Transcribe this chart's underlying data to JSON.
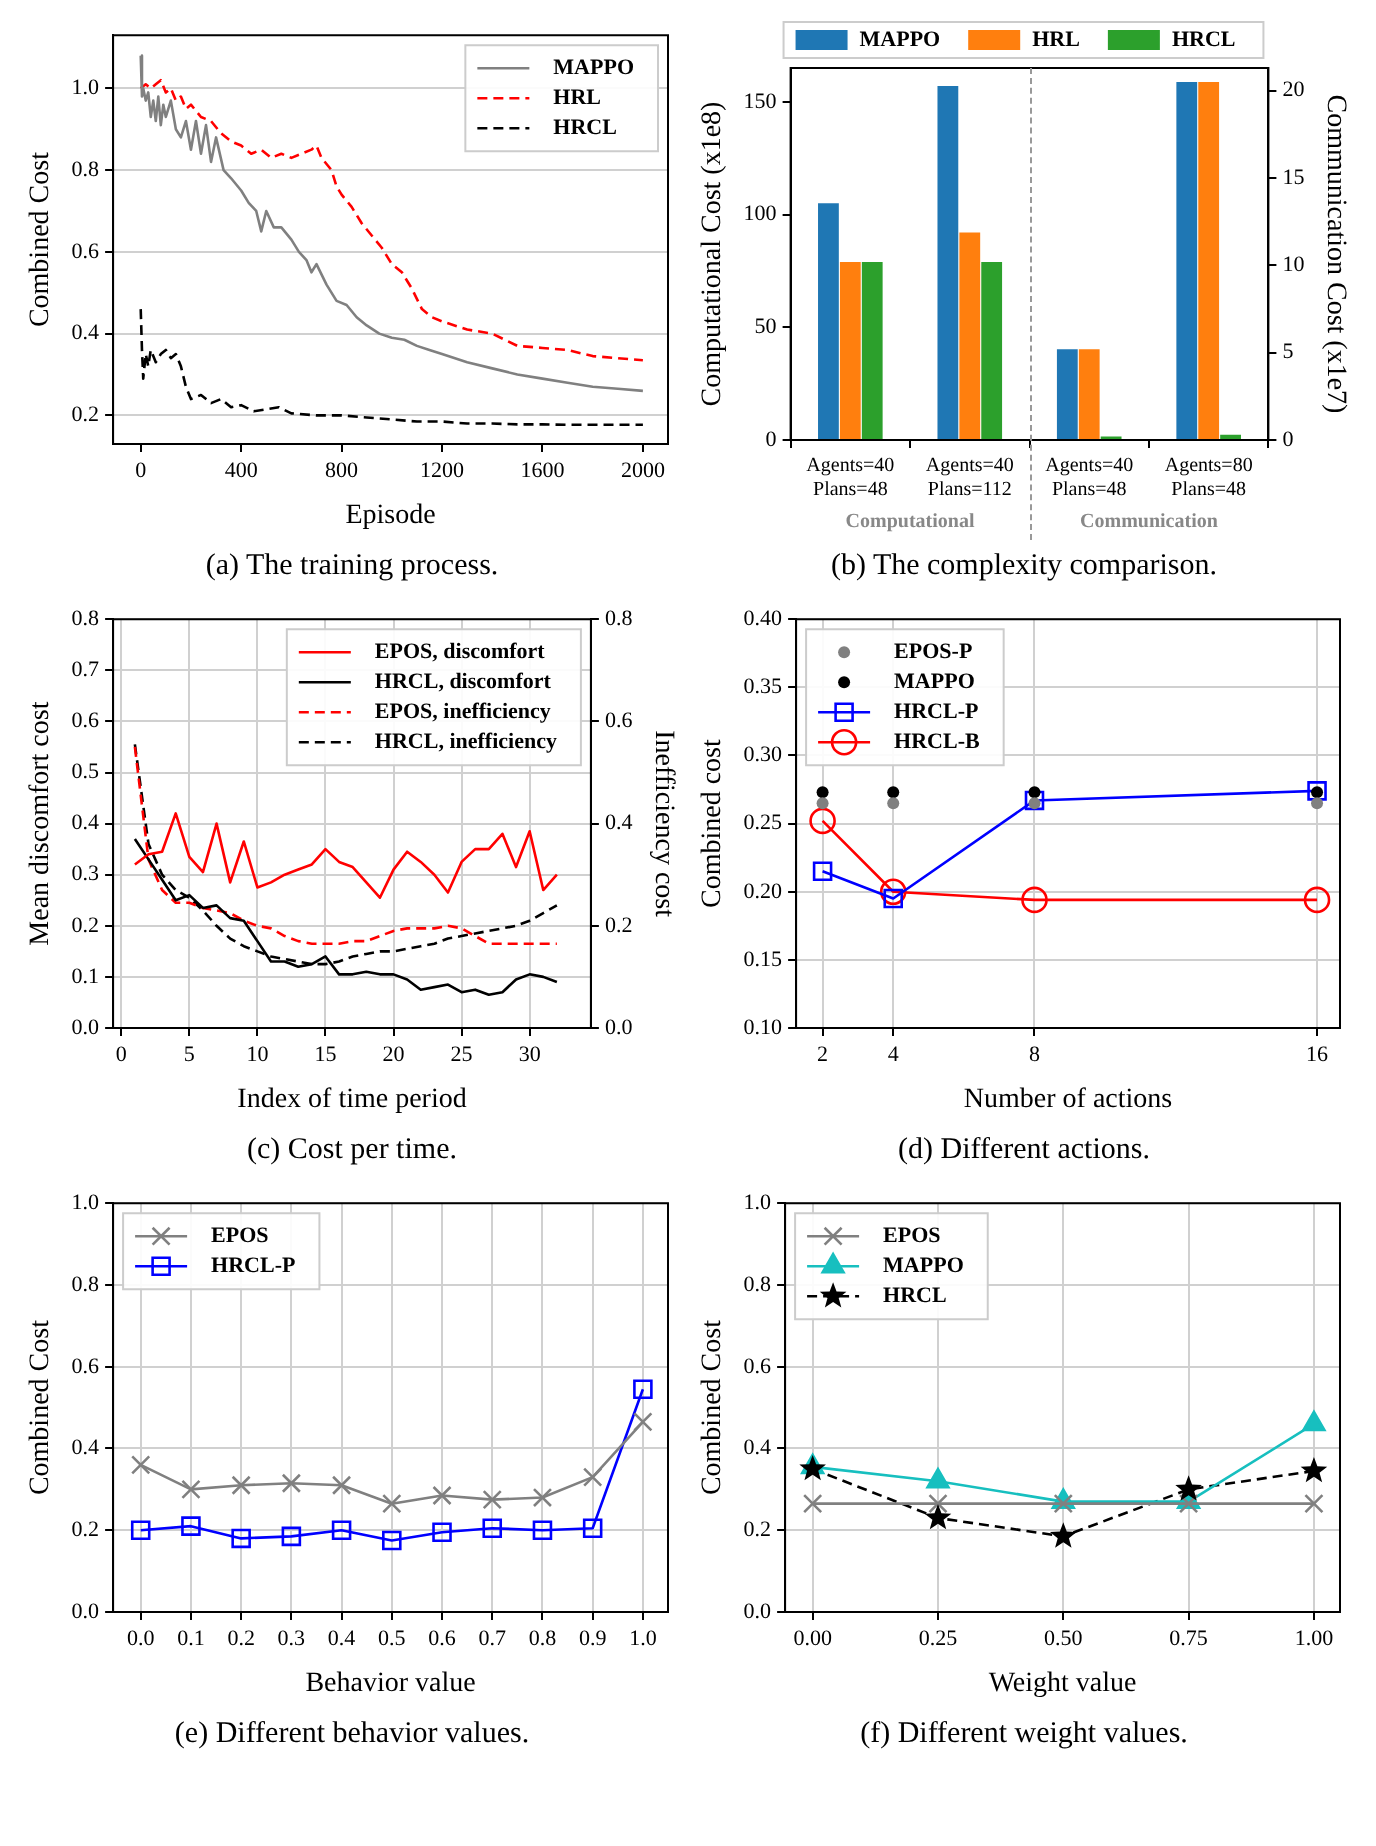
{
  "chart_data": [
    {
      "type": "line",
      "xlabel": "Episode",
      "ylabel": "Combined Cost",
      "annotations": [
        "(a) The training process."
      ],
      "xlim": [
        -110,
        2100
      ],
      "ylim": [
        0.13,
        1.13
      ],
      "xticks": [
        0,
        400,
        800,
        1200,
        1600,
        2000
      ],
      "yticks": [
        0.2,
        0.4,
        0.6,
        0.8,
        {
          "value": 1,
          "label": "1.0"
        }
      ],
      "grid": "y",
      "legend": "top right",
      "series": [
        {
          "name": "MAPPO",
          "color": "#808080",
          "line_style": "solid",
          "x": [
            0,
            5,
            10,
            20,
            30,
            40,
            50,
            60,
            70,
            80,
            90,
            100,
            120,
            140,
            160,
            180,
            200,
            220,
            240,
            260,
            280,
            300,
            330,
            360,
            400,
            430,
            460,
            480,
            500,
            530,
            560,
            600,
            630,
            660,
            680,
            700,
            740,
            780,
            820,
            860,
            900,
            950,
            1000,
            1050,
            1100,
            1150,
            1200,
            1300,
            1400,
            1500,
            1600,
            1700,
            1800,
            1900,
            2000
          ],
          "values": [
            1.08,
            0.98,
            1.0,
            0.97,
            0.99,
            0.93,
            0.97,
            0.92,
            0.98,
            0.91,
            0.96,
            0.93,
            0.97,
            0.9,
            0.88,
            0.92,
            0.85,
            0.92,
            0.84,
            0.91,
            0.82,
            0.88,
            0.8,
            0.78,
            0.75,
            0.72,
            0.7,
            0.65,
            0.7,
            0.66,
            0.66,
            0.63,
            0.6,
            0.58,
            0.55,
            0.57,
            0.52,
            0.48,
            0.47,
            0.44,
            0.42,
            0.4,
            0.39,
            0.385,
            0.37,
            0.36,
            0.35,
            0.33,
            0.315,
            0.3,
            0.29,
            0.28,
            0.27,
            0.265,
            0.26
          ]
        },
        {
          "name": "HRL",
          "color": "#ff0000",
          "line_style": "dashed",
          "x": [
            0,
            20,
            40,
            60,
            80,
            100,
            120,
            140,
            160,
            180,
            200,
            240,
            280,
            320,
            360,
            400,
            440,
            480,
            520,
            560,
            600,
            640,
            680,
            700,
            720,
            760,
            780,
            800,
            840,
            880,
            920,
            960,
            1000,
            1040,
            1080,
            1120,
            1160,
            1200,
            1300,
            1400,
            1500,
            1600,
            1700,
            1800,
            1900,
            2000
          ],
          "values": [
            1.0,
            1.01,
            1.0,
            1.01,
            1.02,
            0.99,
            1.0,
            0.97,
            0.98,
            0.95,
            0.96,
            0.93,
            0.92,
            0.89,
            0.87,
            0.86,
            0.84,
            0.85,
            0.83,
            0.84,
            0.83,
            0.84,
            0.85,
            0.86,
            0.83,
            0.8,
            0.76,
            0.74,
            0.71,
            0.67,
            0.64,
            0.61,
            0.57,
            0.55,
            0.51,
            0.46,
            0.44,
            0.43,
            0.41,
            0.4,
            0.37,
            0.365,
            0.36,
            0.345,
            0.34,
            0.335
          ]
        },
        {
          "name": "HRCL",
          "color": "#000000",
          "line_style": "dashed",
          "x": [
            0,
            5,
            10,
            20,
            30,
            40,
            60,
            80,
            100,
            120,
            140,
            160,
            180,
            200,
            240,
            280,
            320,
            360,
            400,
            450,
            500,
            550,
            600,
            700,
            800,
            900,
            1000,
            1100,
            1200,
            1300,
            1400,
            1500,
            1600,
            1700,
            1800,
            1900,
            2000
          ],
          "values": [
            0.46,
            0.36,
            0.29,
            0.35,
            0.32,
            0.36,
            0.33,
            0.35,
            0.36,
            0.34,
            0.35,
            0.32,
            0.27,
            0.24,
            0.25,
            0.23,
            0.24,
            0.22,
            0.225,
            0.21,
            0.215,
            0.22,
            0.205,
            0.2,
            0.2,
            0.195,
            0.19,
            0.185,
            0.185,
            0.18,
            0.18,
            0.178,
            0.178,
            0.177,
            0.177,
            0.177,
            0.177
          ]
        }
      ]
    },
    {
      "type": "bar",
      "ylabel": "Computational Cost (x1e8)",
      "y2label": "Communication Cost (x1e7)",
      "annotations": [
        "Computational",
        "Communication",
        "(b) The complexity comparison."
      ],
      "categories": [
        "Agents=40\nPlans=48",
        "Agents=40\nPlans=112",
        "Agents=40\nPlans=48",
        "Agents=80\nPlans=48"
      ],
      "ylim": [
        0,
        165
      ],
      "yticks": [
        0,
        50,
        100,
        150
      ],
      "y2lim": [
        0,
        21.3
      ],
      "y2ticks": [
        0,
        5,
        10,
        15,
        20
      ],
      "legend": "top",
      "series": [
        {
          "name": "MAPPO",
          "color": "#1f77b4",
          "values": [
            105,
            157,
            null,
            null
          ]
        },
        {
          "name": "HRL",
          "color": "#ff7f0e",
          "values": [
            79,
            92,
            null,
            null
          ]
        },
        {
          "name": "HRCL",
          "color": "#2ca02c",
          "values": [
            79,
            79,
            null,
            null
          ]
        },
        {
          "color": "#1f77b4",
          "axis": "y2",
          "values": [
            null,
            null,
            5.2,
            20.5
          ]
        },
        {
          "color": "#ff7f0e",
          "axis": "y2",
          "values": [
            null,
            null,
            5.2,
            20.5
          ]
        },
        {
          "color": "#2ca02c",
          "axis": "y2",
          "values": [
            null,
            null,
            0.2,
            0.3
          ]
        }
      ]
    },
    {
      "type": "line",
      "xlabel": "Index of time period",
      "ylabel": "Mean discomfort cost",
      "y2label": "Inefficiency cost",
      "annotations": [
        "(c) Cost per time."
      ],
      "x": [
        1,
        2,
        3,
        4,
        5,
        6,
        7,
        8,
        9,
        10,
        11,
        12,
        13,
        14,
        15,
        16,
        17,
        18,
        19,
        20,
        21,
        22,
        23,
        24,
        25,
        26,
        27,
        28,
        29,
        30,
        31,
        32
      ],
      "xlim": [
        -0.6,
        34.5
      ],
      "xticks": [
        0,
        5,
        10,
        15,
        20,
        25,
        30
      ],
      "ylim": [
        0,
        0.8
      ],
      "yticks": [
        {
          "value": 0,
          "label": "0.0"
        },
        0.1,
        0.2,
        0.3,
        0.4,
        0.5,
        0.6,
        0.7,
        0.8
      ],
      "y2lim": [
        0,
        0.8
      ],
      "y2ticks": [
        {
          "value": 0,
          "label": "0.0"
        },
        0.2,
        0.4,
        0.6,
        0.8
      ],
      "grid": true,
      "legend": "top right",
      "series": [
        {
          "name": "EPOS, discomfort",
          "color": "#ff0000",
          "line_style": "solid",
          "values": [
            0.32,
            0.34,
            0.345,
            0.42,
            0.335,
            0.305,
            0.4,
            0.285,
            0.365,
            0.275,
            0.285,
            0.3,
            0.31,
            0.32,
            0.35,
            0.325,
            0.315,
            0.285,
            0.255,
            0.31,
            0.345,
            0.325,
            0.3,
            0.265,
            0.325,
            0.35,
            0.35,
            0.38,
            0.315,
            0.385,
            0.27,
            0.3
          ]
        },
        {
          "name": "HRCL, discomfort",
          "color": "#000000",
          "line_style": "solid",
          "values": [
            0.37,
            0.33,
            0.29,
            0.25,
            0.26,
            0.235,
            0.24,
            0.215,
            0.21,
            0.17,
            0.13,
            0.13,
            0.12,
            0.125,
            0.14,
            0.105,
            0.105,
            0.11,
            0.105,
            0.105,
            0.095,
            0.075,
            0.08,
            0.085,
            0.07,
            0.075,
            0.065,
            0.07,
            0.095,
            0.105,
            0.1,
            0.09
          ]
        },
        {
          "name": "EPOS, inefficiency",
          "color": "#ff0000",
          "line_style": "dashed",
          "axis": "y2",
          "values": [
            0.55,
            0.33,
            0.27,
            0.245,
            0.245,
            0.235,
            0.23,
            0.225,
            0.21,
            0.2,
            0.195,
            0.18,
            0.17,
            0.165,
            0.165,
            0.165,
            0.17,
            0.17,
            0.18,
            0.19,
            0.195,
            0.195,
            0.195,
            0.2,
            0.195,
            0.18,
            0.165,
            0.165,
            0.165,
            0.165,
            0.165,
            0.165
          ]
        },
        {
          "name": "HRCL, inefficiency",
          "color": "#000000",
          "line_style": "dashed",
          "axis": "y2",
          "values": [
            0.555,
            0.36,
            0.3,
            0.27,
            0.255,
            0.23,
            0.2,
            0.175,
            0.16,
            0.15,
            0.14,
            0.135,
            0.13,
            0.125,
            0.125,
            0.13,
            0.14,
            0.145,
            0.15,
            0.15,
            0.155,
            0.16,
            0.165,
            0.175,
            0.18,
            0.185,
            0.19,
            0.195,
            0.2,
            0.21,
            0.225,
            0.24
          ]
        }
      ]
    },
    {
      "type": "line",
      "xlabel": "Number of actions",
      "ylabel": "Combined cost",
      "annotations": [
        "(d) Different actions."
      ],
      "x": [
        2,
        4,
        8,
        16
      ],
      "xlim": [
        1.25,
        16.65
      ],
      "xticks": [
        2,
        4,
        8,
        16
      ],
      "ylim": [
        0.1,
        0.4
      ],
      "yticks": [
        {
          "value": 0.1,
          "label": "0.10"
        },
        0.15,
        {
          "value": 0.2,
          "label": "0.20"
        },
        0.25,
        {
          "value": 0.3,
          "label": "0.30"
        },
        0.35,
        {
          "value": 0.4,
          "label": "0.40"
        }
      ],
      "grid": true,
      "legend": "top left",
      "series": [
        {
          "name": "EPOS-P",
          "type": "scatter",
          "marker": "circle",
          "color": "#808080",
          "values": [
            0.265,
            0.265,
            0.265,
            0.265
          ]
        },
        {
          "name": "MAPPO",
          "type": "scatter",
          "marker": "circle",
          "color": "#000000",
          "values": [
            0.273,
            0.273,
            0.273,
            0.273
          ]
        },
        {
          "name": "HRCL-P",
          "marker": "square",
          "color": "#0000ff",
          "values": [
            0.215,
            0.195,
            0.267,
            0.274
          ]
        },
        {
          "name": "HRCL-B",
          "marker": "circle",
          "color": "#ff0000",
          "values": [
            0.252,
            0.2,
            0.194,
            0.194
          ]
        }
      ]
    },
    {
      "type": "line",
      "xlabel": "Behavior value",
      "ylabel": "Combined Cost",
      "annotations": [
        "(e) Different behavior values."
      ],
      "x": [
        0,
        0.1,
        0.2,
        0.3,
        0.4,
        0.5,
        0.6,
        0.7,
        0.8,
        0.9,
        1
      ],
      "xlim": [
        -0.055,
        1.05
      ],
      "xticks": [
        {
          "value": 0,
          "label": "0.0"
        },
        0.1,
        0.2,
        0.3,
        0.4,
        0.5,
        0.6,
        0.7,
        0.8,
        0.9,
        {
          "value": 1,
          "label": "1.0"
        }
      ],
      "ylim": [
        0,
        1
      ],
      "yticks": [
        {
          "value": 0,
          "label": "0.0"
        },
        0.2,
        0.4,
        0.6,
        0.8,
        {
          "value": 1,
          "label": "1.0"
        }
      ],
      "grid": true,
      "legend": "top left",
      "series": [
        {
          "name": "EPOS",
          "marker": "cross",
          "color": "#808080",
          "values": [
            0.36,
            0.3,
            0.31,
            0.315,
            0.31,
            0.265,
            0.285,
            0.275,
            0.28,
            0.33,
            0.465
          ]
        },
        {
          "name": "HRCL-P",
          "marker": "square",
          "color": "#0000ff",
          "values": [
            0.2,
            0.21,
            0.18,
            0.185,
            0.2,
            0.175,
            0.195,
            0.205,
            0.2,
            0.205,
            0.545
          ]
        }
      ]
    },
    {
      "type": "line",
      "xlabel": "Weight value",
      "ylabel": "Combined Cost",
      "annotations": [
        "(f) Different weight values."
      ],
      "x": [
        0,
        0.25,
        0.5,
        0.75,
        1
      ],
      "xlim": [
        -0.055,
        1.052
      ],
      "xticks": [
        {
          "value": 0,
          "label": "0.00"
        },
        0.25,
        {
          "value": 0.5,
          "label": "0.50"
        },
        0.75,
        {
          "value": 1,
          "label": "1.00"
        }
      ],
      "ylim": [
        0,
        1
      ],
      "yticks": [
        {
          "value": 0,
          "label": "0.0"
        },
        0.2,
        0.4,
        0.6,
        0.8,
        {
          "value": 1,
          "label": "1.0"
        }
      ],
      "grid": true,
      "legend": "top left",
      "series": [
        {
          "name": "EPOS",
          "marker": "cross",
          "color": "#808080",
          "values": [
            0.265,
            0.265,
            0.265,
            0.265,
            0.265
          ]
        },
        {
          "name": "MAPPO",
          "marker": "triangle",
          "color": "#17bfbf",
          "values": [
            0.355,
            0.32,
            0.27,
            0.27,
            0.46
          ]
        },
        {
          "name": "HRCL",
          "marker": "star",
          "line_style": "dashed",
          "color": "#000000",
          "values": [
            0.35,
            0.23,
            0.185,
            0.3,
            0.345
          ]
        }
      ]
    }
  ]
}
